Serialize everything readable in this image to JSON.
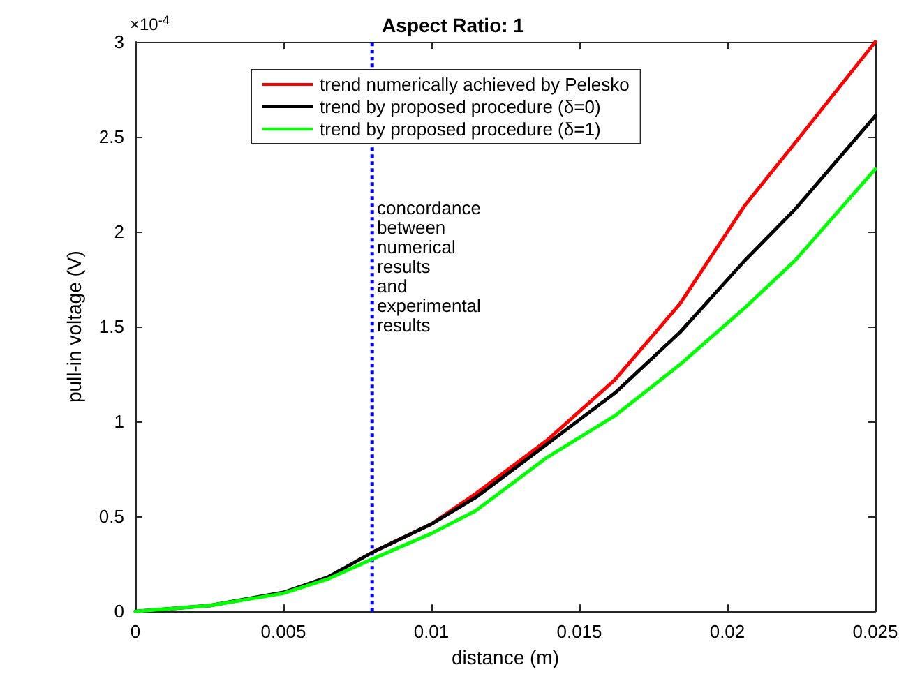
{
  "chart_data": {
    "type": "line",
    "title": "Aspect Ratio: 1",
    "xlabel": "distance (m)",
    "ylabel": "pull-in voltage (V)",
    "annotations": [
      "×10$^{-4}$",
      "concordance\nbetween\nnumerical\nresults\nand\nexperimental\nresults"
    ],
    "x": [
      0,
      0.0025,
      0.005,
      0.0065,
      0.008,
      0.01,
      0.0115,
      0.0139,
      0.0162,
      0.0184,
      0.0206,
      0.0223,
      0.025
    ],
    "series": [
      {
        "name": "trend numerically achieved by Pelesko",
        "color": "#ff0000",
        "values": [
          null,
          null,
          null,
          null,
          0.31,
          0.46,
          0.62,
          0.9,
          1.22,
          1.62,
          2.14,
          2.47,
          3
        ]
      },
      {
        "name": "trend by proposed procedure (δ=0)",
        "color": "#000000",
        "values": [
          0,
          0.03,
          0.1,
          0.18,
          0.31,
          0.46,
          0.6,
          0.88,
          1.15,
          1.47,
          1.85,
          2.12,
          2.61
        ]
      },
      {
        "name": "trend by proposed procedure (δ=1)",
        "color": "#00ff00",
        "values": [
          0,
          0.03,
          0.095,
          0.17,
          0.275,
          0.41,
          0.53,
          0.81,
          1.03,
          1.3,
          1.6,
          1.85,
          2.33
        ]
      }
    ],
    "xlim": [
      0,
      0.025
    ],
    "xticks": [
      0,
      0.005,
      0.01,
      0.015,
      0.02,
      0.025
    ],
    "ylim": [
      0,
      3
    ],
    "yticks": [
      0,
      0.5,
      1,
      1.5,
      2,
      2.5,
      3
    ],
    "ref_lines": [
      {
        "axis": "x",
        "value": 0.008,
        "color": "#0000ff",
        "line_style": "dotted"
      }
    ],
    "grid": false,
    "legend": "top",
    "marker": "none",
    "line_style": "solid"
  }
}
